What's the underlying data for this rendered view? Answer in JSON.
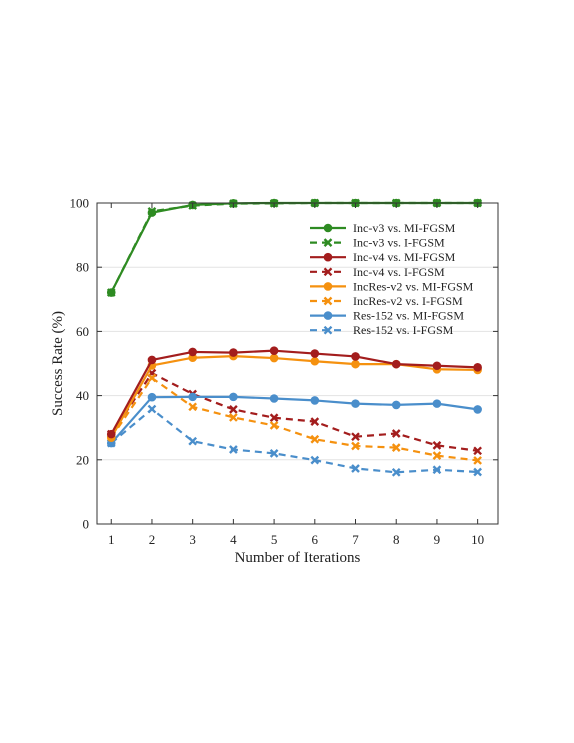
{
  "chart_data": {
    "type": "line",
    "title": "",
    "xlabel": "Number of Iterations",
    "ylabel": "Success Rate (%)",
    "x": [
      1,
      2,
      3,
      4,
      5,
      6,
      7,
      8,
      9,
      10
    ],
    "xlim": [
      0.65,
      10.5
    ],
    "ylim": [
      0,
      100
    ],
    "yticks": [
      0,
      20,
      40,
      60,
      80,
      100
    ],
    "grid": "horizontal",
    "legend": "top-right",
    "series": [
      {
        "name": "Inc-v3 vs. MI-FGSM",
        "color": "#2e8b22",
        "dashed": false,
        "marker": "circle",
        "values": [
          72.1,
          97.0,
          99.4,
          99.9,
          100.0,
          100.0,
          100.0,
          100.0,
          100.0,
          100.0
        ]
      },
      {
        "name": "Inc-v3 vs. I-FGSM",
        "color": "#2e8b22",
        "dashed": true,
        "marker": "x",
        "values": [
          72.1,
          97.4,
          99.2,
          99.8,
          99.9,
          100.0,
          100.0,
          100.0,
          100.0,
          100.0
        ]
      },
      {
        "name": "Inc-v4 vs. MI-FGSM",
        "color": "#a31d1d",
        "dashed": false,
        "marker": "circle",
        "values": [
          28.0,
          51.1,
          53.6,
          53.4,
          54.0,
          53.1,
          52.2,
          49.8,
          49.3,
          48.8
        ]
      },
      {
        "name": "Inc-v4 vs. I-FGSM",
        "color": "#a31d1d",
        "dashed": true,
        "marker": "x",
        "values": [
          28.0,
          47.0,
          40.5,
          35.7,
          33.1,
          31.9,
          27.2,
          28.2,
          24.5,
          22.8
        ]
      },
      {
        "name": "IncRes-v2 vs. MI-FGSM",
        "color": "#f5910f",
        "dashed": false,
        "marker": "circle",
        "values": [
          26.9,
          49.4,
          51.8,
          52.3,
          51.7,
          50.7,
          49.8,
          49.8,
          48.2,
          48.0
        ]
      },
      {
        "name": "IncRes-v2 vs. I-FGSM",
        "color": "#f5910f",
        "dashed": true,
        "marker": "x",
        "values": [
          26.9,
          45.5,
          36.5,
          33.2,
          30.7,
          26.4,
          24.3,
          23.8,
          21.3,
          19.8
        ]
      },
      {
        "name": "Res-152 vs. MI-FGSM",
        "color": "#4a8ecb",
        "dashed": false,
        "marker": "circle",
        "values": [
          25.2,
          39.5,
          39.6,
          39.6,
          39.1,
          38.5,
          37.5,
          37.1,
          37.5,
          35.7
        ]
      },
      {
        "name": "Res-152 vs. I-FGSM",
        "color": "#4a8ecb",
        "dashed": true,
        "marker": "x",
        "values": [
          25.2,
          35.8,
          25.8,
          23.2,
          22.0,
          19.9,
          17.3,
          16.1,
          16.9,
          16.2
        ]
      }
    ]
  }
}
